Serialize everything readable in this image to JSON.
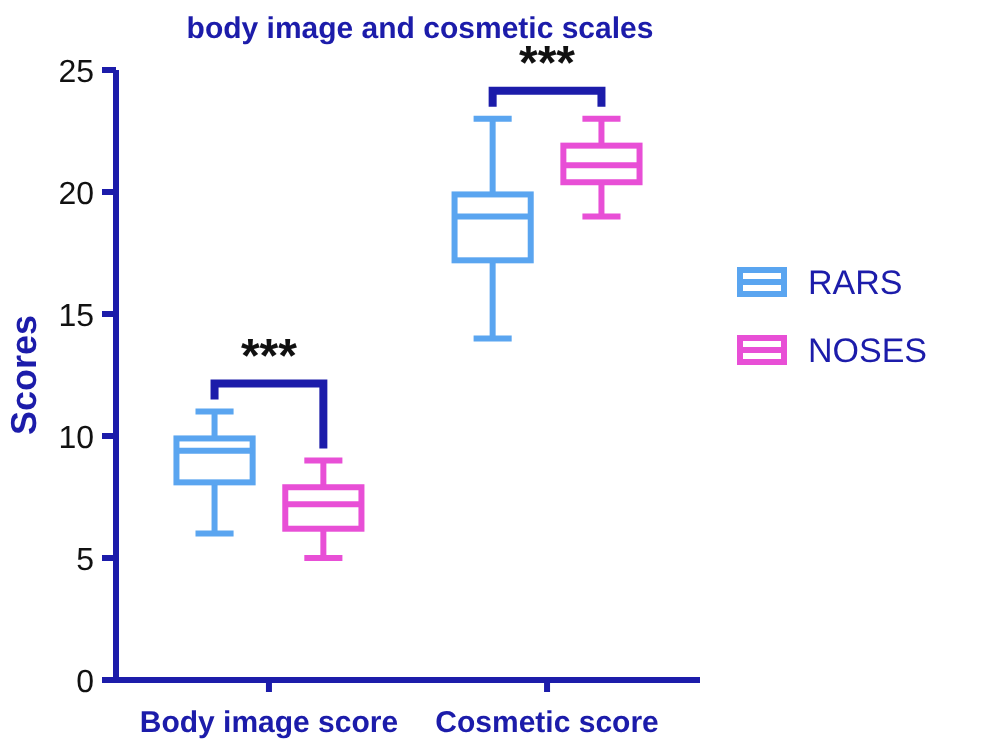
{
  "chart_data": {
    "type": "box",
    "title": "body image and cosmetic scales",
    "ylabel": "Scores",
    "categories": [
      "Body image score",
      "Cosmetic score"
    ],
    "ylim": [
      0,
      25
    ],
    "yticks": [
      0,
      5,
      10,
      15,
      20,
      25
    ],
    "legend": "right",
    "annotations": [
      "***",
      "***"
    ],
    "series": [
      {
        "name": "RARS",
        "color": "#5aa5f0",
        "boxes": [
          {
            "low": 6,
            "q1": 8.1,
            "median": 9.4,
            "q3": 9.9,
            "high": 11
          },
          {
            "low": 14,
            "q1": 17.2,
            "median": 19,
            "q3": 19.9,
            "high": 23
          }
        ]
      },
      {
        "name": "NOSES",
        "color": "#e84fd6",
        "boxes": [
          {
            "low": 5,
            "q1": 6.2,
            "median": 7.2,
            "q3": 7.9,
            "high": 9
          },
          {
            "low": 19,
            "q1": 20.4,
            "median": 21.1,
            "q3": 21.9,
            "high": 23
          }
        ]
      }
    ]
  }
}
